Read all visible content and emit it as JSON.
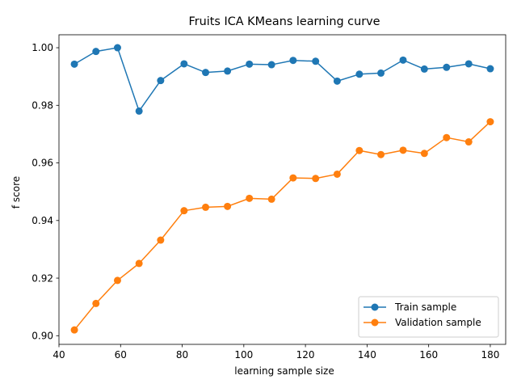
{
  "chart_data": {
    "type": "line",
    "title": "Fruits ICA KMeans learning curve",
    "xlabel": "learning sample size",
    "ylabel": "f score",
    "xlim": [
      40,
      185
    ],
    "ylim": [
      0.897,
      1.0045
    ],
    "xticks": [
      40,
      60,
      80,
      100,
      120,
      140,
      160,
      180
    ],
    "yticks": [
      0.9,
      0.92,
      0.94,
      0.96,
      0.98,
      1.0
    ],
    "ytick_labels": [
      "0.90",
      "0.92",
      "0.94",
      "0.96",
      "0.98",
      "1.00"
    ],
    "grid": false,
    "legend_position": "lower-right",
    "x": [
      45,
      52,
      59,
      66,
      73,
      80.6,
      87.6,
      94.7,
      101.8,
      109,
      116,
      123.3,
      130.3,
      137.5,
      144.5,
      151.7,
      158.6,
      165.8,
      173,
      180
    ],
    "series": [
      {
        "name": "Train sample",
        "color": "#1f77b4",
        "values": [
          0.9943,
          0.9987,
          1.0,
          0.978,
          0.9886,
          0.9944,
          0.9914,
          0.9919,
          0.9943,
          0.9941,
          0.9956,
          0.9953,
          0.9884,
          0.9908,
          0.9912,
          0.9957,
          0.9926,
          0.9932,
          0.9944,
          0.9927
        ]
      },
      {
        "name": "Validation sample",
        "color": "#ff7f0e",
        "values": [
          0.902,
          0.9112,
          0.9192,
          0.9251,
          0.9332,
          0.9434,
          0.9446,
          0.9449,
          0.9477,
          0.9474,
          0.9548,
          0.9546,
          0.9561,
          0.9643,
          0.9629,
          0.9644,
          0.9633,
          0.9688,
          0.9673,
          0.9743
        ]
      }
    ]
  }
}
